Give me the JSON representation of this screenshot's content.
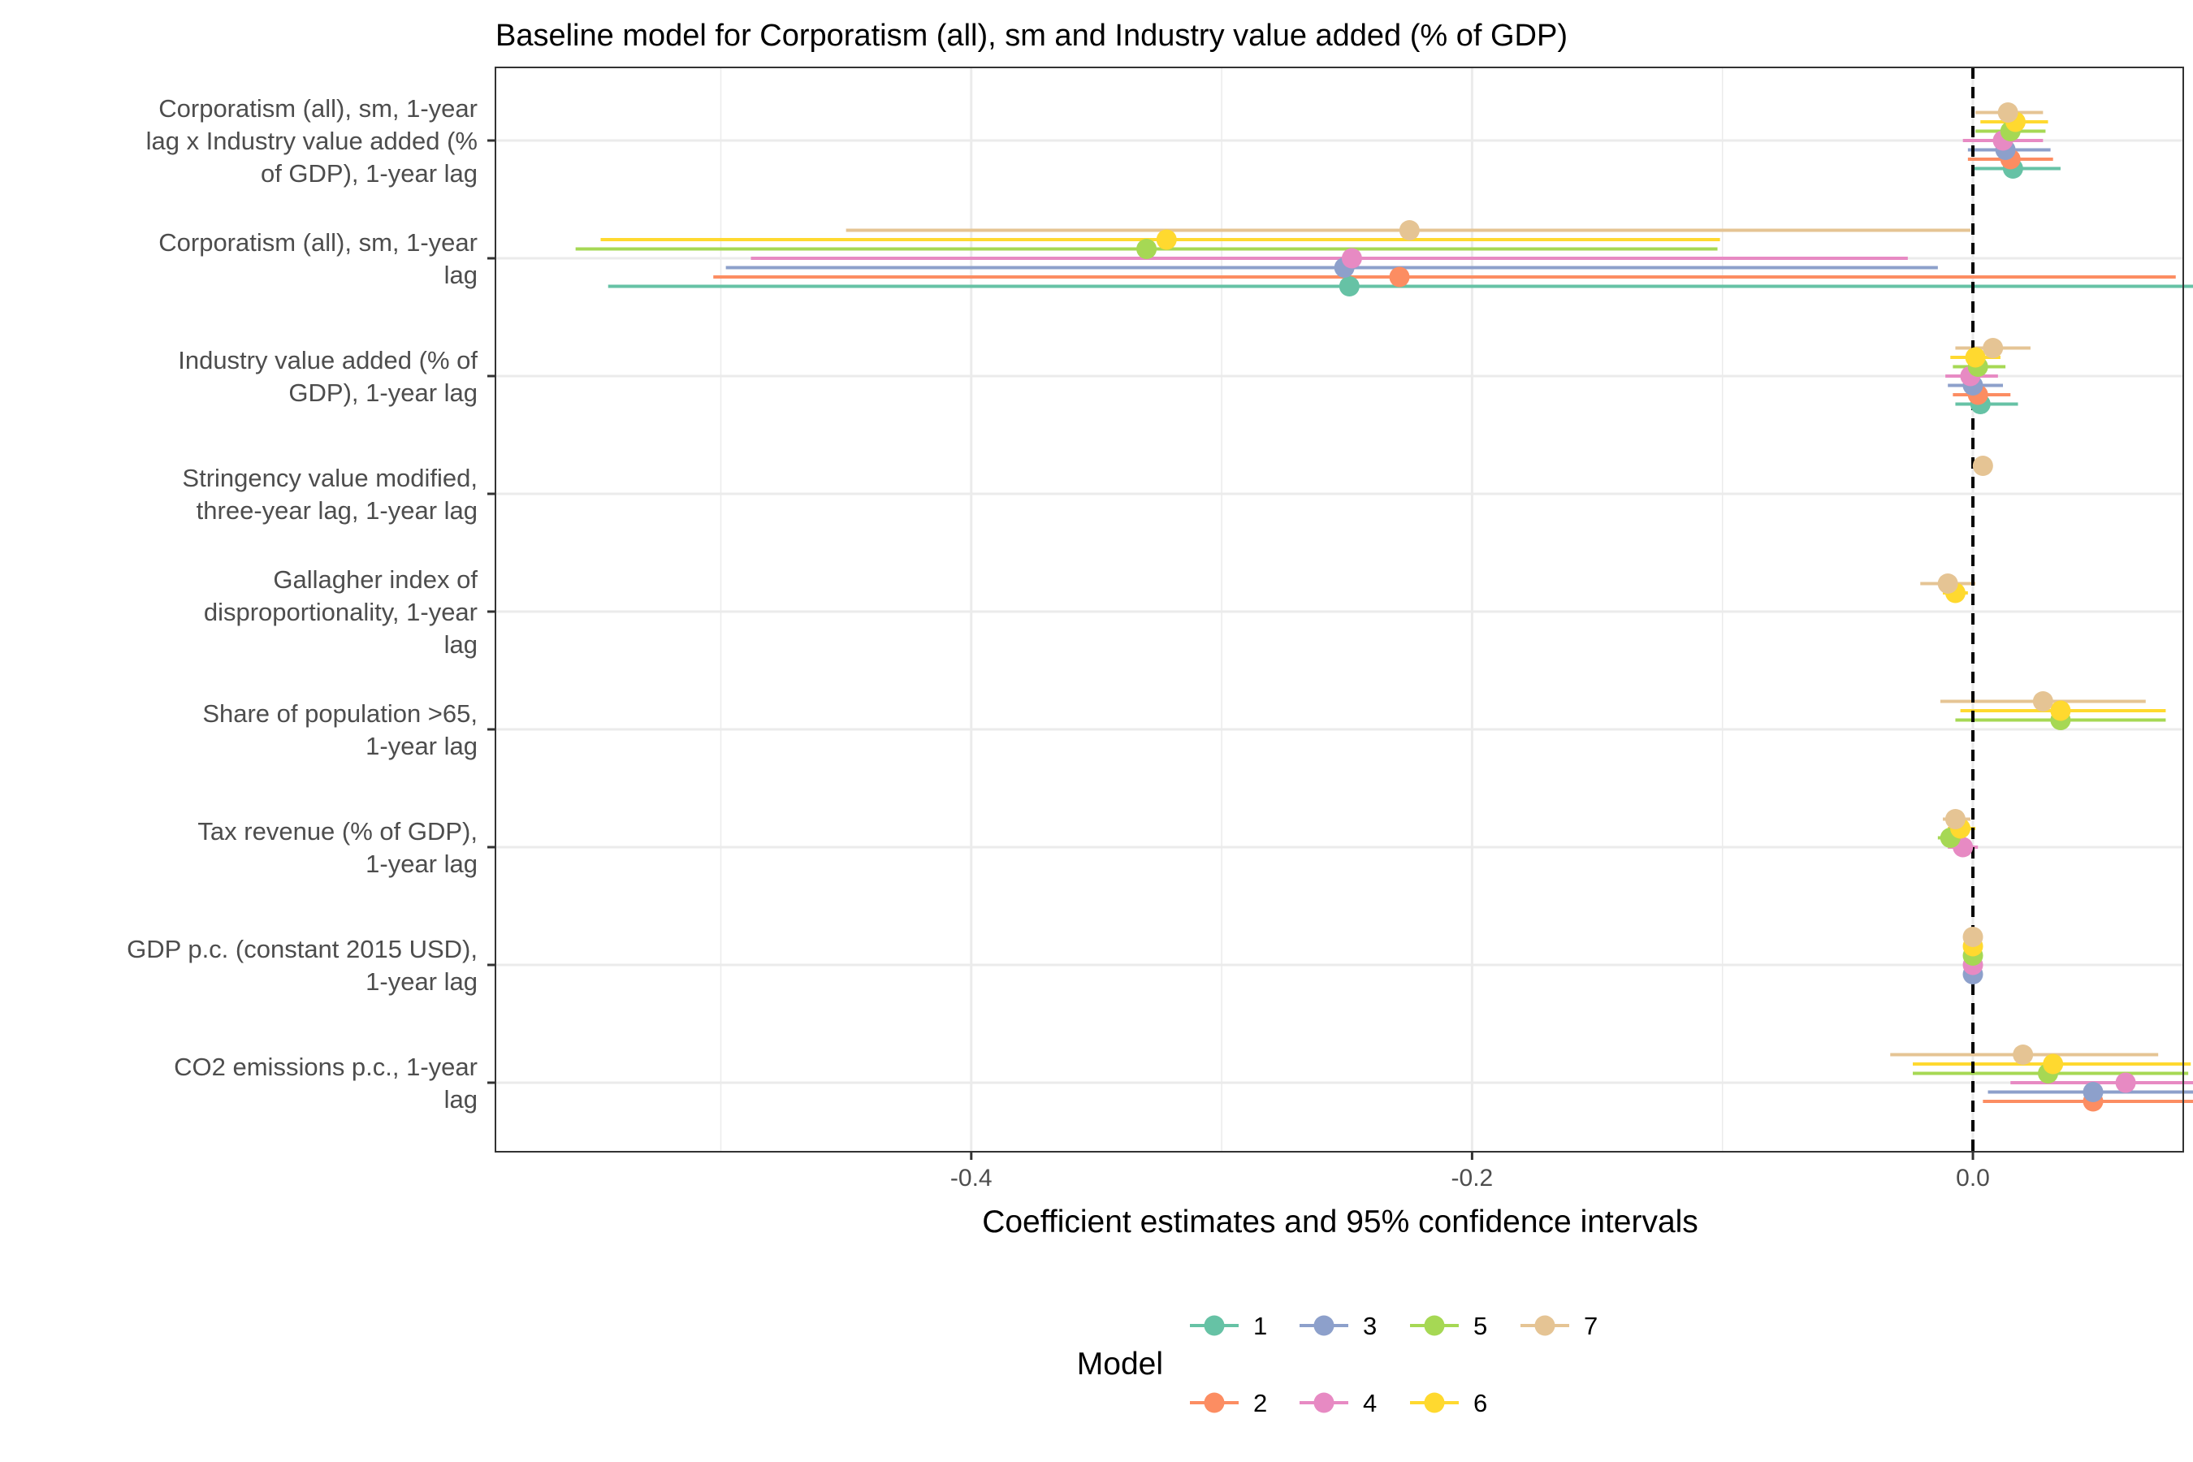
{
  "chart_data": {
    "type": "coefficient-plot",
    "title": "Baseline model for Corporatism (all), sm and Industry value added (% of GDP)",
    "xlabel": "Coefficient estimates and 95% confidence intervals",
    "xlim": [
      -0.59,
      0.084
    ],
    "x_ticks": [
      -0.4,
      -0.2,
      0.0
    ],
    "x_tick_labels": [
      "-0.4",
      "-0.2",
      "0.0"
    ],
    "grid": true,
    "reference_line": 0,
    "legend_title": "Model",
    "legend_position": "bottom",
    "terms": [
      [
        "Corporatism (all), sm, 1-year",
        "lag x Industry value added (%",
        "of GDP), 1-year lag"
      ],
      [
        "Corporatism (all), sm, 1-year",
        "lag"
      ],
      [
        "Industry value added (% of",
        "GDP), 1-year lag"
      ],
      [
        "Stringency value modified,",
        "three-year lag, 1-year lag"
      ],
      [
        "Gallagher index of",
        "disproportionality, 1-year",
        "lag"
      ],
      [
        "Share of population >65,",
        "1-year lag"
      ],
      [
        "Tax revenue (% of GDP),",
        "1-year lag"
      ],
      [
        "GDP p.c. (constant 2015 USD),",
        "1-year lag"
      ],
      [
        "CO2 emissions p.c., 1-year",
        "lag"
      ]
    ],
    "series": [
      {
        "name": "1",
        "color": "#66c2a5",
        "points": [
          {
            "term": 0,
            "est": 0.016,
            "lo": 0.0,
            "hi": 0.035
          },
          {
            "term": 1,
            "est": -0.249,
            "lo": -0.545,
            "hi": 0.091
          },
          {
            "term": 2,
            "est": 0.003,
            "lo": -0.007,
            "hi": 0.018
          }
        ]
      },
      {
        "name": "2",
        "color": "#fc8d62",
        "points": [
          {
            "term": 0,
            "est": 0.015,
            "lo": -0.002,
            "hi": 0.032
          },
          {
            "term": 1,
            "est": -0.229,
            "lo": -0.503,
            "hi": 0.081
          },
          {
            "term": 2,
            "est": 0.002,
            "lo": -0.008,
            "hi": 0.015
          },
          {
            "term": 8,
            "est": 0.048,
            "lo": 0.004,
            "hi": 0.094
          }
        ]
      },
      {
        "name": "3",
        "color": "#8da0cb",
        "points": [
          {
            "term": 0,
            "est": 0.013,
            "lo": -0.002,
            "hi": 0.031
          },
          {
            "term": 1,
            "est": -0.251,
            "lo": -0.498,
            "hi": -0.014
          },
          {
            "term": 2,
            "est": 0.0,
            "lo": -0.01,
            "hi": 0.012
          },
          {
            "term": 7,
            "est": 0.0,
            "lo": -0.001,
            "hi": 0.001
          },
          {
            "term": 8,
            "est": 0.048,
            "lo": 0.006,
            "hi": 0.094
          }
        ]
      },
      {
        "name": "4",
        "color": "#e78ac3",
        "points": [
          {
            "term": 0,
            "est": 0.012,
            "lo": -0.004,
            "hi": 0.028
          },
          {
            "term": 1,
            "est": -0.248,
            "lo": -0.488,
            "hi": -0.026
          },
          {
            "term": 2,
            "est": -0.001,
            "lo": -0.011,
            "hi": 0.01
          },
          {
            "term": 6,
            "est": -0.004,
            "lo": -0.01,
            "hi": 0.002
          },
          {
            "term": 7,
            "est": 0.0,
            "lo": -0.001,
            "hi": 0.001
          },
          {
            "term": 8,
            "est": 0.061,
            "lo": 0.015,
            "hi": 0.106
          }
        ]
      },
      {
        "name": "5",
        "color": "#a6d854",
        "points": [
          {
            "term": 0,
            "est": 0.015,
            "lo": 0.001,
            "hi": 0.029
          },
          {
            "term": 1,
            "est": -0.33,
            "lo": -0.558,
            "hi": -0.102
          },
          {
            "term": 2,
            "est": 0.002,
            "lo": -0.008,
            "hi": 0.013
          },
          {
            "term": 5,
            "est": 0.035,
            "lo": -0.007,
            "hi": 0.077
          },
          {
            "term": 6,
            "est": -0.009,
            "lo": -0.014,
            "hi": -0.003
          },
          {
            "term": 7,
            "est": 0.0,
            "lo": -0.001,
            "hi": 0.001
          },
          {
            "term": 8,
            "est": 0.03,
            "lo": -0.024,
            "hi": 0.086
          }
        ]
      },
      {
        "name": "6",
        "color": "#ffd92f",
        "points": [
          {
            "term": 0,
            "est": 0.017,
            "lo": 0.003,
            "hi": 0.03
          },
          {
            "term": 1,
            "est": -0.322,
            "lo": -0.548,
            "hi": -0.101
          },
          {
            "term": 2,
            "est": 0.001,
            "lo": -0.009,
            "hi": 0.011
          },
          {
            "term": 4,
            "est": -0.007,
            "lo": -0.012,
            "hi": -0.002
          },
          {
            "term": 5,
            "est": 0.035,
            "lo": -0.005,
            "hi": 0.077
          },
          {
            "term": 6,
            "est": -0.005,
            "lo": -0.01,
            "hi": 0.001
          },
          {
            "term": 7,
            "est": 0.0,
            "lo": -0.001,
            "hi": 0.001
          },
          {
            "term": 8,
            "est": 0.032,
            "lo": -0.024,
            "hi": 0.087
          }
        ]
      },
      {
        "name": "7",
        "color": "#e5c494",
        "points": [
          {
            "term": 0,
            "est": 0.014,
            "lo": 0.001,
            "hi": 0.028
          },
          {
            "term": 1,
            "est": -0.225,
            "lo": -0.45,
            "hi": -0.001
          },
          {
            "term": 2,
            "est": 0.008,
            "lo": -0.007,
            "hi": 0.023
          },
          {
            "term": 3,
            "est": 0.004,
            "lo": 0.003,
            "hi": 0.005
          },
          {
            "term": 4,
            "est": -0.01,
            "lo": -0.021,
            "hi": 0.001
          },
          {
            "term": 5,
            "est": 0.028,
            "lo": -0.013,
            "hi": 0.069
          },
          {
            "term": 6,
            "est": -0.007,
            "lo": -0.012,
            "hi": -0.001
          },
          {
            "term": 7,
            "est": 0.0,
            "lo": -0.001,
            "hi": 0.001
          },
          {
            "term": 8,
            "est": 0.02,
            "lo": -0.033,
            "hi": 0.074
          }
        ]
      }
    ]
  }
}
